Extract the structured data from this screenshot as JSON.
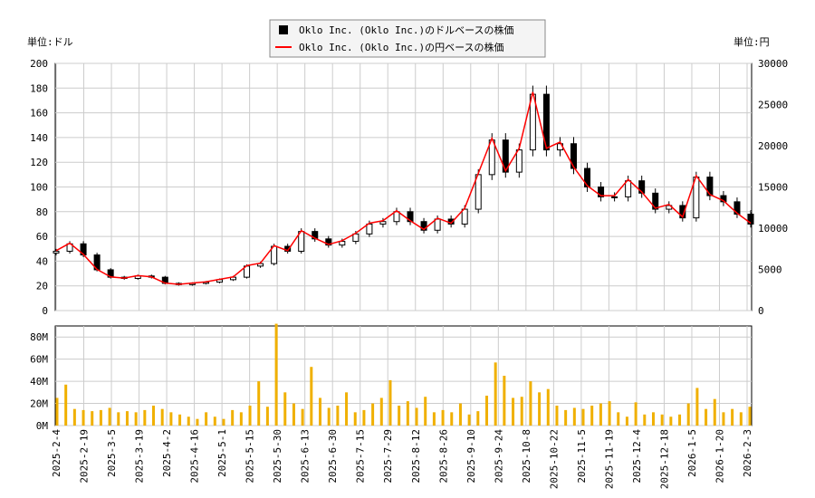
{
  "chart_data": [
    {
      "type": "candlestick+line",
      "legend": [
        "Oklo Inc. (Oklo Inc.)のドルベースの株価",
        "Oklo Inc. (Oklo Inc.)の円ベースの株価"
      ],
      "legend_placement": "top-center",
      "ylabel_left": "単位:ドル",
      "ylabel_right": "単位:円",
      "ylim_left": [
        0,
        200
      ],
      "ylim_right": [
        0,
        30000
      ],
      "yticks_left": [
        0,
        20,
        40,
        60,
        80,
        100,
        120,
        140,
        160,
        180,
        200
      ],
      "yticks_right": [
        0,
        5000,
        10000,
        15000,
        20000,
        25000,
        30000
      ],
      "grid": true,
      "colors": {
        "candle": "#000000",
        "yen_line": "#ff0000"
      },
      "weekly_close_usd": [
        48,
        54,
        45,
        33,
        27,
        26,
        28,
        27,
        22,
        21,
        22,
        23,
        25,
        27,
        36,
        38,
        52,
        48,
        64,
        58,
        53,
        56,
        62,
        70,
        72,
        80,
        72,
        65,
        74,
        70,
        82,
        110,
        138,
        112,
        130,
        175,
        130,
        135,
        115,
        100,
        92,
        92,
        105,
        95,
        82,
        85,
        75,
        108,
        93,
        88,
        78,
        70
      ]
    },
    {
      "type": "bar",
      "ylim": [
        0,
        90
      ],
      "yticks": [
        "0M",
        "20M",
        "40M",
        "60M",
        "80M"
      ],
      "color": "#f0b000",
      "weekly_volume_millions": [
        25,
        37,
        15,
        14,
        13,
        14,
        16,
        12,
        13,
        12,
        14,
        18,
        15,
        12,
        10,
        8,
        6,
        12,
        8,
        6,
        14,
        12,
        18,
        40,
        17,
        92,
        30,
        20,
        15,
        53,
        25,
        16,
        18,
        30,
        12,
        14,
        20,
        25,
        41,
        18,
        22,
        16,
        26,
        12,
        14,
        12,
        20,
        10,
        13,
        27,
        57,
        45,
        25,
        26,
        40,
        30,
        33,
        18,
        14,
        16,
        15,
        18,
        20,
        22,
        12,
        8,
        21,
        10,
        12,
        10,
        8,
        10,
        20,
        34,
        15,
        24,
        12,
        15,
        12,
        17
      ]
    }
  ],
  "x_ticks": [
    "2025-2-4",
    "2025-2-19",
    "2025-3-5",
    "2025-3-19",
    "2025-4-2",
    "2025-4-16",
    "2025-5-1",
    "2025-5-15",
    "2025-5-30",
    "2025-6-13",
    "2025-6-30",
    "2025-7-15",
    "2025-7-29",
    "2025-8-12",
    "2025-8-26",
    "2025-9-10",
    "2025-9-24",
    "2025-10-8",
    "2025-10-22",
    "2025-11-5",
    "2025-11-19",
    "2025-12-4",
    "2025-12-18",
    "2026-1-5",
    "2026-1-20",
    "2026-2-3"
  ]
}
